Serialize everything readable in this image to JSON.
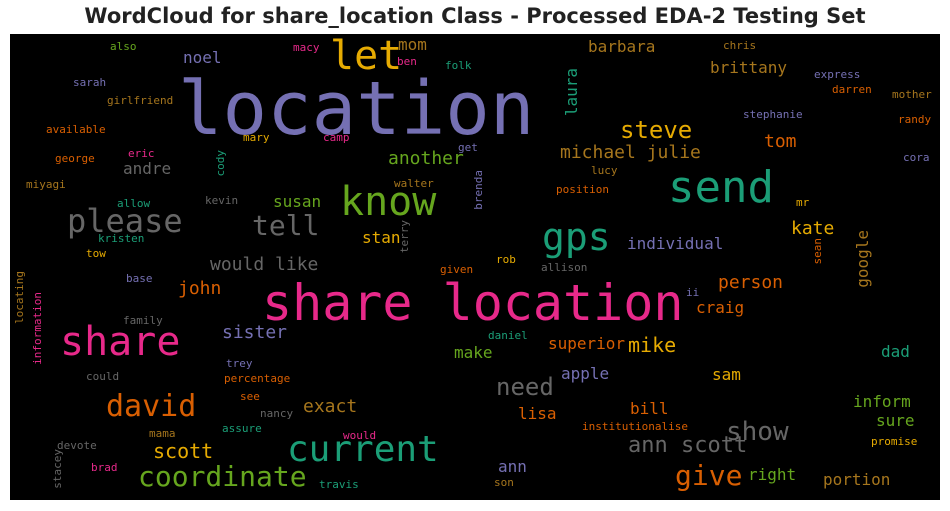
{
  "title": "WordCloud for share_location Class - Processed EDA-2 Testing Set",
  "colors": {
    "background": "#000000",
    "purple": "#7570b3",
    "pink": "#e7298a",
    "green": "#1b9e77",
    "lime": "#66a61e",
    "orange": "#d95f02",
    "gold": "#e6ab02",
    "brown": "#a6761d",
    "gray": "#666666"
  },
  "words": [
    {
      "text": "location",
      "color": "#7570b3"
    },
    {
      "text": "share location",
      "color": "#e7298a"
    },
    {
      "text": "send",
      "color": "#1b9e77"
    },
    {
      "text": "know",
      "color": "#66a61e"
    },
    {
      "text": "let",
      "color": "#e6ab02"
    },
    {
      "text": "share",
      "color": "#e7298a"
    },
    {
      "text": "gps",
      "color": "#1b9e77"
    },
    {
      "text": "current",
      "color": "#1b9e77"
    },
    {
      "text": "please",
      "color": "#666666"
    },
    {
      "text": "david",
      "color": "#d95f02"
    },
    {
      "text": "tell",
      "color": "#666666"
    },
    {
      "text": "coordinate",
      "color": "#66a61e"
    },
    {
      "text": "give",
      "color": "#d95f02"
    },
    {
      "text": "show",
      "color": "#666666"
    },
    {
      "text": "need",
      "color": "#666666"
    },
    {
      "text": "steve",
      "color": "#e6ab02"
    },
    {
      "text": "ann scott",
      "color": "#666666"
    },
    {
      "text": "michael julie",
      "color": "#a6761d"
    },
    {
      "text": "would like",
      "color": "#666666"
    },
    {
      "text": "scott",
      "color": "#e6ab02"
    },
    {
      "text": "exact",
      "color": "#a6761d"
    },
    {
      "text": "mike",
      "color": "#e6ab02"
    },
    {
      "text": "john",
      "color": "#d95f02"
    },
    {
      "text": "person",
      "color": "#d95f02"
    },
    {
      "text": "sister",
      "color": "#7570b3"
    },
    {
      "text": "another",
      "color": "#66a61e"
    },
    {
      "text": "individual",
      "color": "#7570b3"
    },
    {
      "text": "make",
      "color": "#66a61e"
    },
    {
      "text": "tom",
      "color": "#d95f02"
    },
    {
      "text": "kate",
      "color": "#e6ab02"
    },
    {
      "text": "barbara",
      "color": "#a6761d"
    },
    {
      "text": "brittany",
      "color": "#a6761d"
    },
    {
      "text": "mom",
      "color": "#a6761d"
    },
    {
      "text": "noel",
      "color": "#7570b3"
    },
    {
      "text": "susan",
      "color": "#66a61e"
    },
    {
      "text": "stan",
      "color": "#e6ab02"
    },
    {
      "text": "andre",
      "color": "#666666"
    },
    {
      "text": "laura",
      "color": "#1b9e77"
    },
    {
      "text": "superior",
      "color": "#d95f02"
    },
    {
      "text": "sam",
      "color": "#e6ab02"
    },
    {
      "text": "bill",
      "color": "#d95f02"
    },
    {
      "text": "craig",
      "color": "#d95f02"
    },
    {
      "text": "dad",
      "color": "#1b9e77"
    },
    {
      "text": "inform",
      "color": "#66a61e"
    },
    {
      "text": "sure",
      "color": "#66a61e"
    },
    {
      "text": "right",
      "color": "#66a61e"
    },
    {
      "text": "portion",
      "color": "#a6761d"
    },
    {
      "text": "ann",
      "color": "#7570b3"
    },
    {
      "text": "lisa",
      "color": "#d95f02"
    },
    {
      "text": "apple",
      "color": "#7570b3"
    },
    {
      "text": "google",
      "color": "#a6761d"
    },
    {
      "text": "also",
      "color": "#66a61e"
    },
    {
      "text": "macy",
      "color": "#e7298a"
    },
    {
      "text": "ben",
      "color": "#e7298a"
    },
    {
      "text": "folk",
      "color": "#1b9e77"
    },
    {
      "text": "chris",
      "color": "#a6761d"
    },
    {
      "text": "express",
      "color": "#7570b3"
    },
    {
      "text": "darren",
      "color": "#d95f02"
    },
    {
      "text": "mother",
      "color": "#a6761d"
    },
    {
      "text": "sarah",
      "color": "#7570b3"
    },
    {
      "text": "girlfriend",
      "color": "#a6761d"
    },
    {
      "text": "available",
      "color": "#d95f02"
    },
    {
      "text": "mary",
      "color": "#e6ab02"
    },
    {
      "text": "camp",
      "color": "#e7298a"
    },
    {
      "text": "stephanie",
      "color": "#7570b3"
    },
    {
      "text": "randy",
      "color": "#d95f02"
    },
    {
      "text": "george",
      "color": "#d95f02"
    },
    {
      "text": "eric",
      "color": "#e7298a"
    },
    {
      "text": "cody",
      "color": "#1b9e77"
    },
    {
      "text": "get",
      "color": "#7570b3"
    },
    {
      "text": "lucy",
      "color": "#a6761d"
    },
    {
      "text": "cora",
      "color": "#7570b3"
    },
    {
      "text": "miyagi",
      "color": "#a6761d"
    },
    {
      "text": "walter",
      "color": "#a6761d"
    },
    {
      "text": "position",
      "color": "#d95f02"
    },
    {
      "text": "brenda",
      "color": "#7570b3"
    },
    {
      "text": "mr",
      "color": "#e6ab02"
    },
    {
      "text": "allow",
      "color": "#1b9e77"
    },
    {
      "text": "kevin",
      "color": "#666666"
    },
    {
      "text": "kristen",
      "color": "#1b9e77"
    },
    {
      "text": "terry",
      "color": "#666666"
    },
    {
      "text": "tow",
      "color": "#e6ab02"
    },
    {
      "text": "sean",
      "color": "#d95f02"
    },
    {
      "text": "base",
      "color": "#7570b3"
    },
    {
      "text": "given",
      "color": "#d95f02"
    },
    {
      "text": "rob",
      "color": "#e6ab02"
    },
    {
      "text": "allison",
      "color": "#666666"
    },
    {
      "text": "ii",
      "color": "#7570b3"
    },
    {
      "text": "locating",
      "color": "#a6761d"
    },
    {
      "text": "information",
      "color": "#e7298a"
    },
    {
      "text": "family",
      "color": "#666666"
    },
    {
      "text": "daniel",
      "color": "#1b9e77"
    },
    {
      "text": "trey",
      "color": "#7570b3"
    },
    {
      "text": "could",
      "color": "#666666"
    },
    {
      "text": "percentage",
      "color": "#d95f02"
    },
    {
      "text": "see",
      "color": "#d95f02"
    },
    {
      "text": "nancy",
      "color": "#666666"
    },
    {
      "text": "mama",
      "color": "#a6761d"
    },
    {
      "text": "assure",
      "color": "#1b9e77"
    },
    {
      "text": "would",
      "color": "#e7298a"
    },
    {
      "text": "devote",
      "color": "#666666"
    },
    {
      "text": "stacey",
      "color": "#666666"
    },
    {
      "text": "brad",
      "color": "#e7298a"
    },
    {
      "text": "travis",
      "color": "#1b9e77"
    },
    {
      "text": "son",
      "color": "#a6761d"
    },
    {
      "text": "institutionalise",
      "color": "#d95f02"
    },
    {
      "text": "promise",
      "color": "#e6ab02"
    }
  ]
}
